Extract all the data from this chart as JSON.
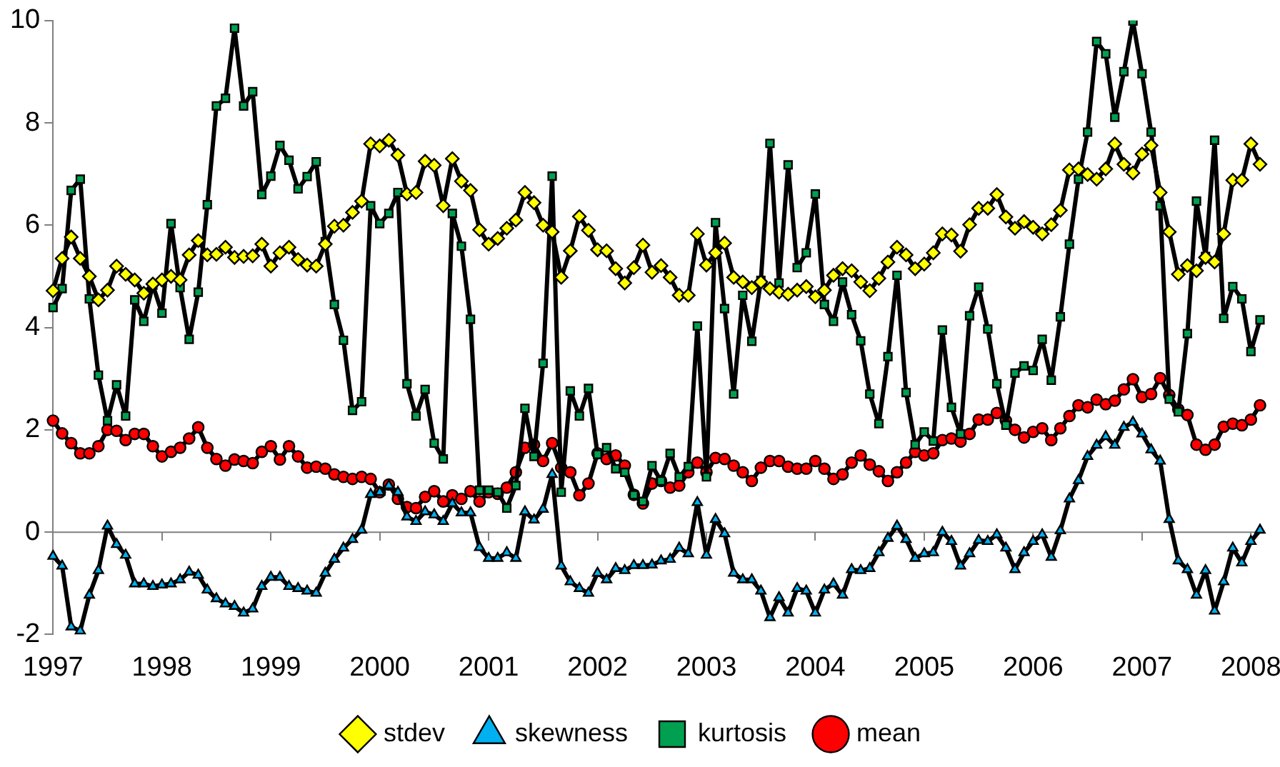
{
  "chart_data": {
    "type": "line",
    "categories": [
      "1997",
      null,
      null,
      null,
      null,
      null,
      null,
      null,
      null,
      null,
      null,
      null,
      "1998",
      null,
      null,
      null,
      null,
      null,
      null,
      null,
      null,
      null,
      null,
      null,
      "1999",
      null,
      null,
      null,
      null,
      null,
      null,
      null,
      null,
      null,
      null,
      null,
      "2000",
      null,
      null,
      null,
      null,
      null,
      null,
      null,
      null,
      null,
      null,
      null,
      "2001",
      null,
      null,
      null,
      null,
      null,
      null,
      null,
      null,
      null,
      null,
      null,
      "2002",
      null,
      null,
      null,
      null,
      null,
      null,
      null,
      null,
      null,
      null,
      null,
      "2003",
      null,
      null,
      null,
      null,
      null,
      null,
      null,
      null,
      null,
      null,
      null,
      "2004",
      null,
      null,
      null,
      null,
      null,
      null,
      null,
      null,
      null,
      null,
      null,
      "2005",
      null,
      null,
      null,
      null,
      null,
      null,
      null,
      null,
      null,
      null,
      null,
      "2006",
      null,
      null,
      null,
      null,
      null,
      null,
      null,
      null,
      null,
      null,
      null,
      "2007",
      null,
      null,
      null,
      null,
      null,
      null,
      null,
      null,
      null,
      null,
      null,
      "2008",
      null
    ],
    "series": [
      {
        "name": "stdev",
        "color": "#ffff00",
        "marker": "diamond",
        "values": [
          4.72,
          5.35,
          5.77,
          5.35,
          5.0,
          4.54,
          4.73,
          5.2,
          5.04,
          4.93,
          4.67,
          4.85,
          4.93,
          5.0,
          4.93,
          5.42,
          5.7,
          5.42,
          5.43,
          5.57,
          5.37,
          5.39,
          5.4,
          5.63,
          5.2,
          5.46,
          5.57,
          5.33,
          5.22,
          5.2,
          5.63,
          5.98,
          6.0,
          6.25,
          6.47,
          7.59,
          7.55,
          7.66,
          7.37,
          6.61,
          6.64,
          7.25,
          7.17,
          6.38,
          7.3,
          6.86,
          6.68,
          5.91,
          5.63,
          5.74,
          5.94,
          6.1,
          6.64,
          6.44,
          6.0,
          5.87,
          4.98,
          5.5,
          6.17,
          5.9,
          5.52,
          5.5,
          5.15,
          4.87,
          5.17,
          5.61,
          5.08,
          5.21,
          4.98,
          4.63,
          4.63,
          5.83,
          5.22,
          5.46,
          5.65,
          4.98,
          4.89,
          4.78,
          4.89,
          4.76,
          4.69,
          4.65,
          4.73,
          4.8,
          4.6,
          4.73,
          5.02,
          5.15,
          5.11,
          4.89,
          4.72,
          4.96,
          5.28,
          5.57,
          5.42,
          5.15,
          5.24,
          5.46,
          5.83,
          5.81,
          5.49,
          6.01,
          6.33,
          6.33,
          6.6,
          6.16,
          5.94,
          6.07,
          5.96,
          5.83,
          6.01,
          6.29,
          7.08,
          7.1,
          6.99,
          6.9,
          7.1,
          7.59,
          7.19,
          7.02,
          7.39,
          7.56,
          6.64,
          5.87,
          5.04,
          5.21,
          5.11,
          5.37,
          5.28,
          5.83,
          6.88,
          6.88,
          7.59,
          7.19
        ]
      },
      {
        "name": "skewness",
        "color": "#00b0f0",
        "marker": "triangle",
        "values": [
          -0.47,
          -0.66,
          -1.85,
          -1.93,
          -1.23,
          -0.75,
          0.12,
          -0.24,
          -0.45,
          -1.01,
          -1.01,
          -1.06,
          -1.03,
          -1.01,
          -0.93,
          -0.78,
          -0.84,
          -1.13,
          -1.3,
          -1.4,
          -1.45,
          -1.58,
          -1.5,
          -1.06,
          -0.88,
          -0.88,
          -1.06,
          -1.1,
          -1.15,
          -1.19,
          -0.8,
          -0.53,
          -0.31,
          -0.14,
          0.04,
          0.74,
          0.78,
          0.91,
          0.78,
          0.3,
          0.21,
          0.4,
          0.34,
          0.21,
          0.56,
          0.38,
          0.38,
          -0.3,
          -0.51,
          -0.51,
          -0.4,
          -0.51,
          0.4,
          0.24,
          0.45,
          1.13,
          -0.66,
          -0.97,
          -1.1,
          -1.19,
          -0.8,
          -0.93,
          -0.71,
          -0.75,
          -0.65,
          -0.65,
          -0.64,
          -0.56,
          -0.53,
          -0.31,
          -0.42,
          0.58,
          -0.45,
          0.25,
          -0.03,
          -0.8,
          -0.93,
          -0.93,
          -1.15,
          -1.67,
          -1.28,
          -1.58,
          -1.1,
          -1.15,
          -1.58,
          -1.13,
          -1.01,
          -1.23,
          -0.73,
          -0.75,
          -0.71,
          -0.4,
          -0.12,
          0.12,
          -0.14,
          -0.51,
          -0.42,
          -0.4,
          0.0,
          -0.18,
          -0.66,
          -0.42,
          -0.16,
          -0.18,
          -0.05,
          -0.31,
          -0.73,
          -0.4,
          -0.18,
          -0.05,
          -0.49,
          0.03,
          0.65,
          1.01,
          1.48,
          1.7,
          1.87,
          1.7,
          2.05,
          2.15,
          1.92,
          1.61,
          1.39,
          0.25,
          -0.56,
          -0.73,
          -1.23,
          -0.75,
          -1.54,
          -0.97,
          -0.31,
          -0.6,
          -0.18,
          0.04
        ]
      },
      {
        "name": "kurtosis",
        "color": "#00a050",
        "marker": "square",
        "values": [
          4.39,
          4.76,
          6.68,
          6.9,
          4.56,
          3.07,
          2.18,
          2.88,
          2.27,
          4.54,
          4.12,
          4.83,
          4.28,
          6.03,
          4.78,
          3.77,
          4.69,
          6.4,
          8.33,
          8.48,
          9.85,
          8.33,
          8.61,
          6.6,
          6.96,
          7.56,
          7.27,
          6.71,
          6.95,
          7.24,
          5.68,
          4.45,
          3.75,
          2.38,
          2.55,
          6.38,
          6.03,
          6.23,
          6.64,
          2.9,
          2.27,
          2.79,
          1.74,
          1.43,
          6.23,
          5.59,
          4.16,
          0.82,
          0.82,
          0.78,
          0.47,
          0.91,
          2.42,
          1.48,
          3.3,
          6.96,
          0.78,
          2.76,
          2.27,
          2.81,
          1.52,
          1.65,
          1.24,
          1.17,
          0.73,
          0.6,
          1.3,
          1.0,
          1.54,
          1.08,
          1.28,
          4.03,
          1.08,
          6.05,
          4.37,
          2.7,
          4.63,
          3.73,
          4.92,
          7.6,
          4.87,
          7.18,
          5.17,
          5.46,
          6.61,
          4.45,
          4.12,
          4.89,
          4.25,
          3.74,
          2.7,
          2.12,
          3.43,
          5.02,
          2.73,
          1.71,
          1.96,
          1.78,
          3.95,
          2.44,
          1.92,
          4.23,
          4.79,
          3.97,
          2.9,
          2.09,
          3.11,
          3.25,
          3.16,
          3.77,
          2.97,
          4.21,
          5.63,
          6.9,
          7.82,
          9.59,
          9.35,
          8.11,
          9.0,
          9.99,
          8.96,
          7.82,
          6.38,
          2.6,
          2.35,
          3.88,
          6.47,
          5.39,
          7.66,
          4.18,
          4.8,
          4.56,
          3.53,
          4.15
        ]
      },
      {
        "name": "mean",
        "color": "#ff0000",
        "marker": "circle",
        "values": [
          2.18,
          1.93,
          1.74,
          1.54,
          1.54,
          1.68,
          2.0,
          1.98,
          1.8,
          1.92,
          1.92,
          1.68,
          1.48,
          1.57,
          1.65,
          1.83,
          2.05,
          1.65,
          1.43,
          1.3,
          1.42,
          1.39,
          1.35,
          1.57,
          1.68,
          1.42,
          1.68,
          1.48,
          1.26,
          1.28,
          1.24,
          1.13,
          1.08,
          1.04,
          1.08,
          1.04,
          0.78,
          0.93,
          0.65,
          0.49,
          0.47,
          0.69,
          0.8,
          0.6,
          0.72,
          0.65,
          0.8,
          0.6,
          0.78,
          0.75,
          0.87,
          1.17,
          1.65,
          1.71,
          1.39,
          1.74,
          1.26,
          1.17,
          0.72,
          0.95,
          1.54,
          1.43,
          1.5,
          1.3,
          0.73,
          0.56,
          0.95,
          1.0,
          0.87,
          0.91,
          1.17,
          1.36,
          1.17,
          1.45,
          1.43,
          1.3,
          1.17,
          1.0,
          1.26,
          1.39,
          1.39,
          1.28,
          1.24,
          1.24,
          1.39,
          1.24,
          1.04,
          1.13,
          1.36,
          1.5,
          1.32,
          1.19,
          1.0,
          1.17,
          1.36,
          1.57,
          1.5,
          1.54,
          1.8,
          1.83,
          1.77,
          1.92,
          2.2,
          2.2,
          2.33,
          2.18,
          2.0,
          1.85,
          1.96,
          2.03,
          1.8,
          2.03,
          2.27,
          2.48,
          2.44,
          2.59,
          2.5,
          2.57,
          2.79,
          2.99,
          2.64,
          2.7,
          3.01,
          2.68,
          2.4,
          2.29,
          1.71,
          1.61,
          1.71,
          2.06,
          2.12,
          2.09,
          2.2,
          2.48
        ]
      }
    ],
    "ref_lines": [
      {
        "axis": "y",
        "value": 0,
        "color": "#808080"
      }
    ],
    "ylim": [
      -2,
      10
    ],
    "yticks": [
      -2,
      0,
      2,
      4,
      6,
      8,
      10
    ],
    "grid": false,
    "legend": "bottom",
    "line_style": "solid"
  }
}
